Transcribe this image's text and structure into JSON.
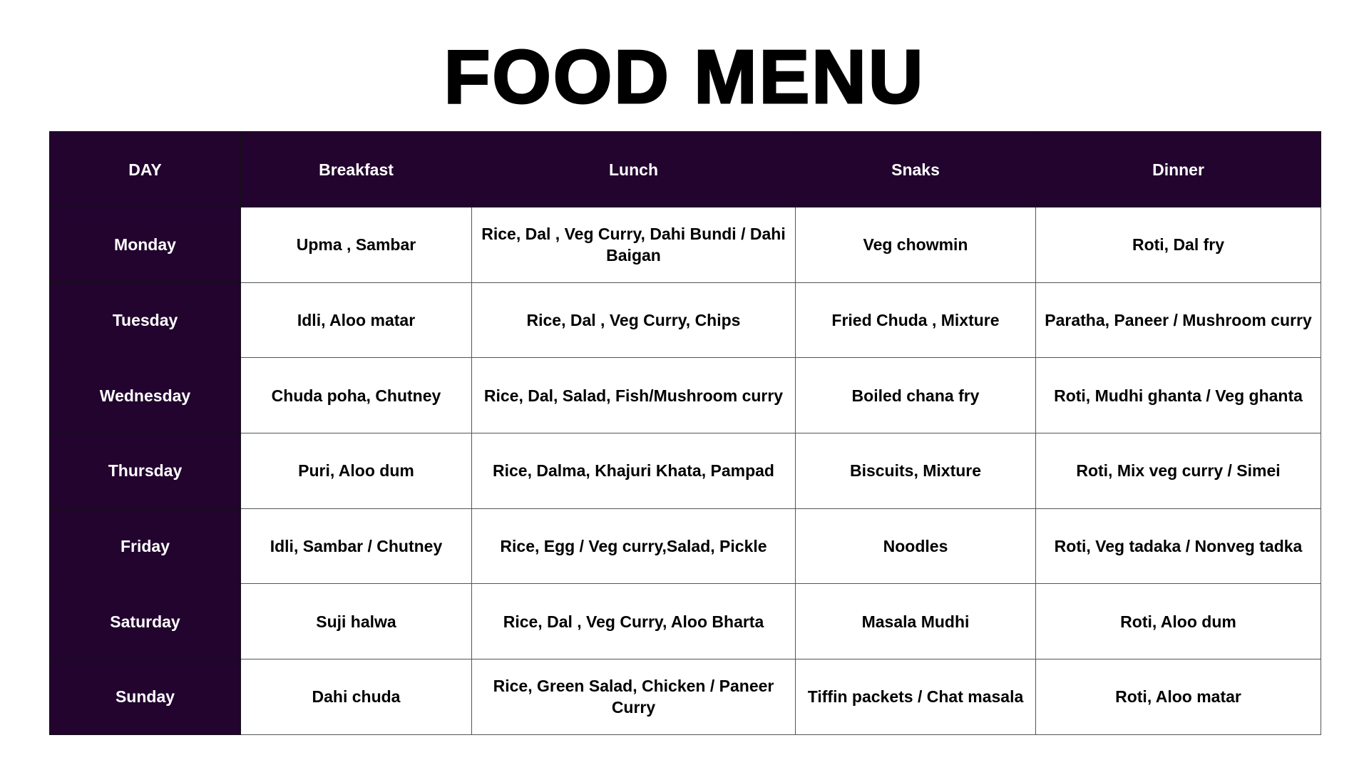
{
  "title": "FOOD MENU",
  "colors": {
    "header_bg": "#22042e",
    "header_text": "#ffffff"
  },
  "columns": [
    "DAY",
    "Breakfast",
    "Lunch",
    "Snaks",
    "Dinner"
  ],
  "rows": [
    {
      "day": "Monday",
      "breakfast": "Upma , Sambar",
      "lunch": "Rice, Dal , Veg Curry, Dahi Bundi / Dahi Baigan",
      "snacks": "Veg chowmin",
      "dinner": "Roti, Dal fry"
    },
    {
      "day": "Tuesday",
      "breakfast": "Idli, Aloo matar",
      "lunch": "Rice, Dal , Veg Curry, Chips",
      "snacks": "Fried Chuda , Mixture",
      "dinner": "Paratha, Paneer / Mushroom curry"
    },
    {
      "day": "Wednesday",
      "breakfast": "Chuda poha, Chutney",
      "lunch": "Rice, Dal, Salad, Fish/Mushroom curry",
      "snacks": "Boiled chana fry",
      "dinner": "Roti, Mudhi ghanta / Veg ghanta"
    },
    {
      "day": "Thursday",
      "breakfast": "Puri, Aloo dum",
      "lunch": "Rice, Dalma, Khajuri Khata, Pampad",
      "snacks": "Biscuits, Mixture",
      "dinner": "Roti, Mix veg curry / Simei"
    },
    {
      "day": "Friday",
      "breakfast": "Idli, Sambar / Chutney",
      "lunch": "Rice, Egg / Veg curry,Salad, Pickle",
      "snacks": "Noodles",
      "dinner": "Roti, Veg tadaka / Nonveg tadka"
    },
    {
      "day": "Saturday",
      "breakfast": "Suji halwa",
      "lunch": "Rice, Dal , Veg Curry, Aloo Bharta",
      "snacks": "Masala Mudhi",
      "dinner": "Roti, Aloo dum"
    },
    {
      "day": "Sunday",
      "breakfast": "Dahi chuda",
      "lunch": "Rice, Green Salad, Chicken / Paneer Curry",
      "snacks": "Tiffin packets / Chat masala",
      "dinner": "Roti, Aloo matar"
    }
  ]
}
